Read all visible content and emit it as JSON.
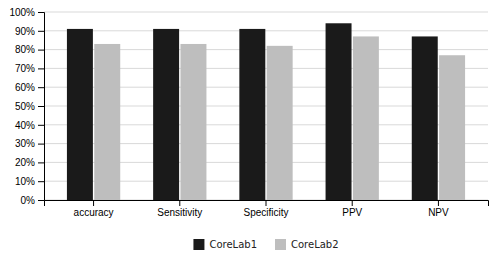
{
  "chart_data": {
    "type": "bar",
    "categories": [
      "accuracy",
      "Sensitivity",
      "Specificity",
      "PPV",
      "NPV"
    ],
    "series": [
      {
        "name": "CoreLab1",
        "color": "#1a1a1a",
        "values": [
          0.91,
          0.91,
          0.91,
          0.94,
          0.87
        ]
      },
      {
        "name": "CoreLab2",
        "color": "#bebebe",
        "values": [
          0.83,
          0.83,
          0.82,
          0.87,
          0.77
        ]
      }
    ],
    "ylim": [
      0,
      1.0
    ],
    "yticks": [
      {
        "value": 0.0,
        "label": "0%"
      },
      {
        "value": 0.1,
        "label": "10%"
      },
      {
        "value": 0.2,
        "label": "20%"
      },
      {
        "value": 0.3,
        "label": "30%"
      },
      {
        "value": 0.4,
        "label": "40%"
      },
      {
        "value": 0.5,
        "label": "50%"
      },
      {
        "value": 0.6,
        "label": "60%"
      },
      {
        "value": 0.7,
        "label": "70%"
      },
      {
        "value": 0.8,
        "label": "80%"
      },
      {
        "value": 0.9,
        "label": "90%"
      },
      {
        "value": 1.0,
        "label": "100%"
      }
    ],
    "grid": true,
    "legend": "bottom"
  }
}
